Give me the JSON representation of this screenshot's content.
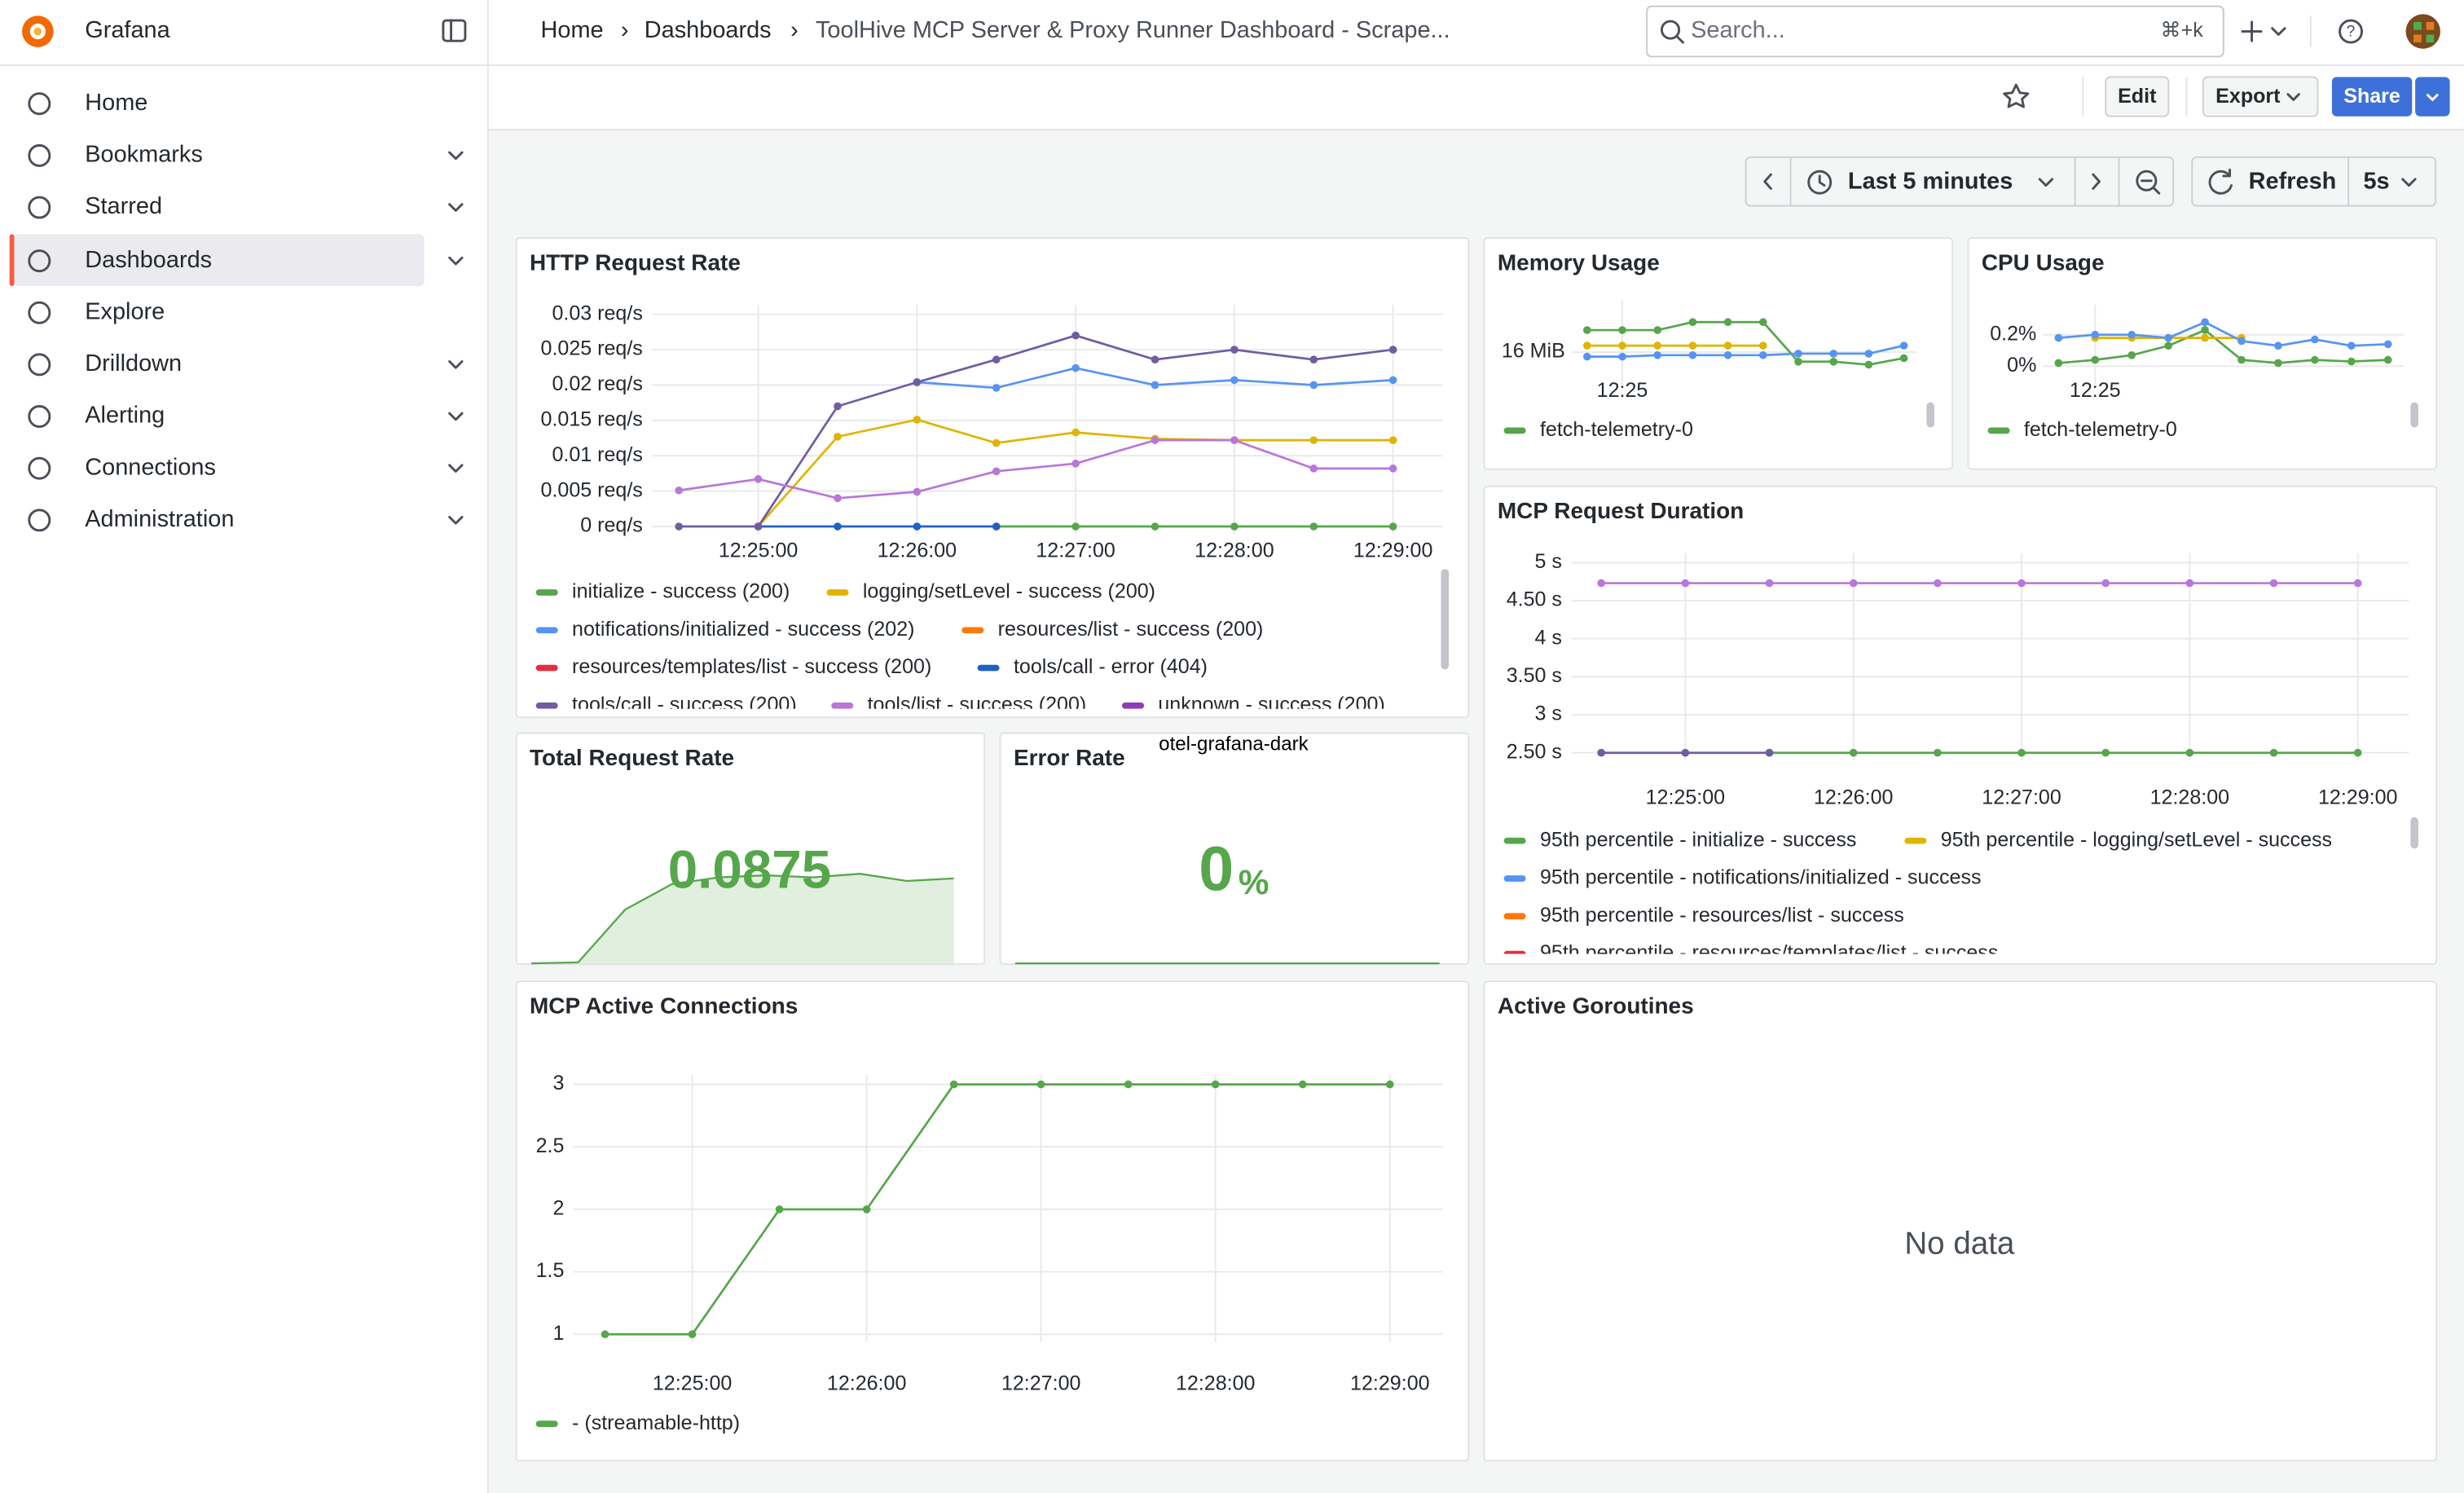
{
  "app": {
    "name": "Grafana"
  },
  "sidebar": {
    "items": [
      "Home",
      "Bookmarks",
      "Starred",
      "Dashboards",
      "Explore",
      "Drilldown",
      "Alerting",
      "Connections",
      "Administration"
    ]
  },
  "breadcrumb": [
    "Home",
    "Dashboards",
    "ToolHive MCP Server & Proxy Runner Dashboard - Scrape..."
  ],
  "search": {
    "placeholder": "Search...",
    "shortcut": "⌘+k"
  },
  "toolbar": {
    "edit": "Edit",
    "export": "Export",
    "share": "Share"
  },
  "time_controls": {
    "range": "Last 5 minutes",
    "refresh": "Refresh",
    "interval": "5s"
  },
  "chart_data": [
    {
      "type": "line",
      "title": "HTTP Request Rate",
      "x": [
        "12:24:30",
        "12:25:00",
        "12:25:30",
        "12:26:00",
        "12:26:30",
        "12:27:00",
        "12:27:30",
        "12:28:00",
        "12:28:30",
        "12:29:00"
      ],
      "xticks": [
        "12:25:00",
        "12:26:00",
        "12:27:00",
        "12:28:00",
        "12:29:00"
      ],
      "ylim": [
        0,
        0.03
      ],
      "yticks": [
        {
          "value": 0,
          "label": "0 req/s"
        },
        {
          "value": 0.005,
          "label": "0.005 req/s"
        },
        {
          "value": 0.01,
          "label": "0.01 req/s"
        },
        {
          "value": 0.015,
          "label": "0.015 req/s"
        },
        {
          "value": 0.02,
          "label": "0.02 req/s"
        },
        {
          "value": 0.025,
          "label": "0.025 req/s"
        },
        {
          "value": 0.03,
          "label": "0.03 req/s"
        }
      ],
      "series": [
        {
          "name": "initialize - success (200)",
          "color": "#56a64b",
          "values": [
            null,
            null,
            null,
            null,
            0,
            0,
            0,
            0,
            0,
            0
          ]
        },
        {
          "name": "logging/setLevel - success (200)",
          "color": "#e0b400",
          "values": [
            null,
            0,
            0.0127,
            0.0151,
            0.0118,
            0.0133,
            0.0124,
            0.0122,
            0.0122,
            0.0122
          ]
        },
        {
          "name": "notifications/initialized - success (202)",
          "color": "#5794f2",
          "values": [
            null,
            null,
            null,
            0.0204,
            0.0196,
            0.0224,
            0.02,
            0.0207,
            0.02,
            0.0207
          ]
        },
        {
          "name": "resources/list - success (200)",
          "color": "#ff780a",
          "values": [
            null,
            null,
            null,
            null,
            null,
            null,
            null,
            null,
            null,
            null
          ]
        },
        {
          "name": "resources/templates/list - success (200)",
          "color": "#e02f44",
          "values": [
            null,
            null,
            null,
            null,
            null,
            null,
            null,
            null,
            null,
            null
          ]
        },
        {
          "name": "tools/call - error (404)",
          "color": "#1f60c4",
          "values": [
            null,
            0,
            0,
            0,
            0,
            null,
            null,
            null,
            null,
            null
          ]
        },
        {
          "name": "tools/call - success (200)",
          "color": "#705da0",
          "values": [
            0,
            0,
            0.017,
            0.0204,
            0.0236,
            0.027,
            0.0236,
            0.025,
            0.0236,
            0.025
          ]
        },
        {
          "name": "tools/list - success (200)",
          "color": "#b877d9",
          "values": [
            0.0051,
            0.0067,
            0.004,
            0.0049,
            0.0078,
            0.0089,
            0.0122,
            0.0122,
            0.0082,
            0.0082
          ]
        },
        {
          "name": "unknown - success (200)",
          "color": "#8f3bb8",
          "values": [
            null,
            null,
            null,
            null,
            null,
            null,
            null,
            null,
            null,
            null
          ]
        }
      ]
    },
    {
      "type": "line",
      "title": "Memory Usage",
      "x": [
        "12:24:30",
        "12:25:00",
        "12:25:30",
        "12:26:00",
        "12:26:30",
        "12:27:00",
        "12:27:30",
        "12:28:00",
        "12:28:30",
        "12:29:00"
      ],
      "xticks": [
        "12:25"
      ],
      "ylim": [
        15.5,
        16.85
      ],
      "yticks": [
        {
          "value": 16,
          "label": "16 MiB"
        }
      ],
      "series": [
        {
          "name": "fetch-telemetry-0",
          "color": "#56a64b",
          "values": [
            16.44,
            16.44,
            16.44,
            16.6,
            16.6,
            16.6,
            15.81,
            15.81,
            15.75,
            15.88
          ]
        },
        {
          "color": "#e0b400",
          "values": [
            16.13,
            16.13,
            16.13,
            16.13,
            16.13,
            16.13,
            null,
            null,
            null,
            null
          ]
        },
        {
          "color": "#5794f2",
          "values": [
            15.91,
            15.91,
            15.94,
            15.94,
            15.94,
            15.94,
            15.97,
            15.97,
            15.97,
            16.13
          ]
        }
      ]
    },
    {
      "type": "line",
      "title": "CPU Usage",
      "x": [
        "12:24:30",
        "12:25:00",
        "12:25:30",
        "12:26:00",
        "12:26:30",
        "12:27:00",
        "12:27:30",
        "12:28:00",
        "12:28:30",
        "12:29:00"
      ],
      "xticks": [
        "12:25"
      ],
      "ylim": [
        -0.07,
        0.33
      ],
      "yticks": [
        {
          "value": 0,
          "label": "0%"
        },
        {
          "value": 0.2,
          "label": "0.2%"
        }
      ],
      "series": [
        {
          "name": "fetch-telemetry-0",
          "color": "#56a64b",
          "values": [
            0.02,
            0.04,
            0.07,
            0.13,
            0.23,
            0.04,
            0.02,
            0.04,
            0.03,
            0.04
          ]
        },
        {
          "color": "#e0b400",
          "values": [
            null,
            0.18,
            0.18,
            0.18,
            0.18,
            0.18,
            null,
            null,
            null,
            null
          ]
        },
        {
          "color": "#5794f2",
          "values": [
            0.18,
            0.2,
            0.2,
            0.18,
            0.28,
            0.16,
            0.13,
            0.17,
            0.13,
            0.14
          ]
        }
      ]
    },
    {
      "type": "line",
      "title": "MCP Request Duration",
      "x": [
        "12:24:30",
        "12:25:00",
        "12:25:30",
        "12:26:00",
        "12:26:30",
        "12:27:00",
        "12:27:30",
        "12:28:00",
        "12:28:30",
        "12:29:00"
      ],
      "xticks": [
        "12:25:00",
        "12:26:00",
        "12:27:00",
        "12:28:00",
        "12:29:00"
      ],
      "ylim": [
        2.5,
        5
      ],
      "yticks": [
        {
          "value": 2.5,
          "label": "2.50 s"
        },
        {
          "value": 3,
          "label": "3 s"
        },
        {
          "value": 3.5,
          "label": "3.50 s"
        },
        {
          "value": 4,
          "label": "4 s"
        },
        {
          "value": 4.5,
          "label": "4.50 s"
        },
        {
          "value": 5,
          "label": "5 s"
        }
      ],
      "series": [
        {
          "name": "95th percentile - initialize - success",
          "color": "#56a64b",
          "values": [
            null,
            null,
            2.5,
            2.5,
            2.5,
            2.5,
            2.5,
            2.5,
            2.5,
            2.5
          ]
        },
        {
          "name": "95th percentile - logging/setLevel - success",
          "color": "#e0b400",
          "values": [
            null,
            null,
            null,
            null,
            null,
            null,
            null,
            null,
            null,
            null
          ]
        },
        {
          "name": "95th percentile - notifications/initialized - success",
          "color": "#5794f2",
          "values": [
            null,
            null,
            null,
            null,
            null,
            null,
            null,
            null,
            null,
            null
          ]
        },
        {
          "name": "95th percentile - resources/list - success",
          "color": "#ff780a",
          "values": [
            null,
            null,
            null,
            null,
            null,
            null,
            null,
            null,
            null,
            null
          ]
        },
        {
          "name": "95th percentile - resources/templates/list - success",
          "color": "#e02f44",
          "values": [
            null,
            null,
            null,
            null,
            null,
            null,
            null,
            null,
            null,
            null
          ]
        },
        {
          "color": "#705da0",
          "values": [
            2.5,
            2.5,
            2.5,
            null,
            null,
            null,
            null,
            null,
            null,
            null
          ]
        },
        {
          "color": "#b877d9",
          "values": [
            4.73,
            4.73,
            4.73,
            4.73,
            4.73,
            4.73,
            4.73,
            4.73,
            4.73,
            4.73
          ]
        }
      ]
    },
    {
      "type": "stat",
      "title": "Total Request Rate",
      "value": 0.0875,
      "color": "#56a64b",
      "sparkline": [
        0,
        0.001,
        0.0525,
        0.0775,
        0.084,
        0.086,
        0.084,
        0.0875,
        0.0805,
        0.083
      ]
    },
    {
      "type": "stat",
      "title": "Error Rate",
      "value": 0,
      "unit": "%",
      "color": "#56a64b",
      "annotation": "otel-grafana-dark",
      "sparkline": [
        0,
        0,
        0,
        0,
        0,
        0,
        0,
        0,
        0,
        0
      ]
    },
    {
      "type": "line",
      "title": "MCP Active Connections",
      "x": [
        "12:24:30",
        "12:25:00",
        "12:25:30",
        "12:26:00",
        "12:26:30",
        "12:27:00",
        "12:27:30",
        "12:28:00",
        "12:28:30",
        "12:29:00"
      ],
      "xticks": [
        "12:25:00",
        "12:26:00",
        "12:27:00",
        "12:28:00",
        "12:29:00"
      ],
      "ylim": [
        1,
        3
      ],
      "yticks": [
        1,
        1.5,
        2,
        2.5,
        3
      ],
      "series": [
        {
          "name": "- (streamable-http)",
          "color": "#56a64b",
          "values": [
            1,
            1,
            2,
            2,
            3,
            3,
            3,
            3,
            3,
            3
          ]
        }
      ]
    },
    {
      "type": "empty",
      "title": "Active Goroutines",
      "message": "No data"
    }
  ]
}
